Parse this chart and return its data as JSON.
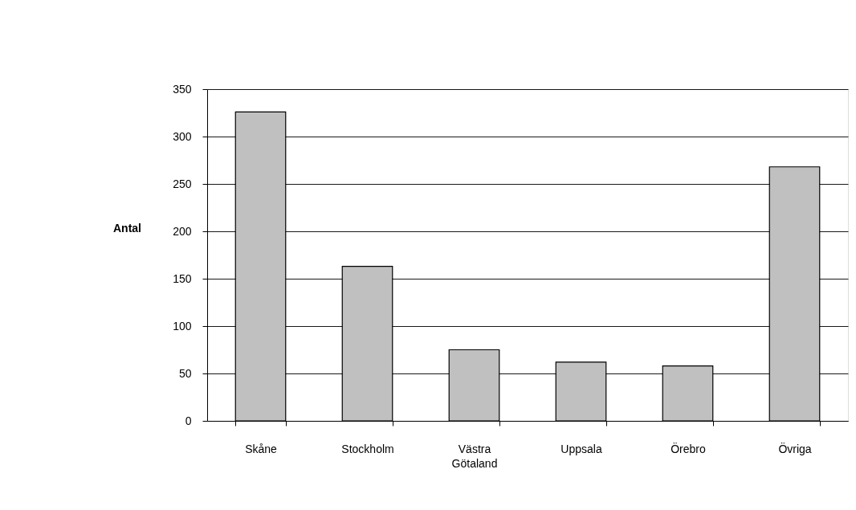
{
  "chart_data": {
    "type": "bar",
    "ylabel": "Antal",
    "categories": [
      "Skåne",
      "Stockholm",
      "Västra Götaland",
      "Uppsala",
      "Örebro",
      "Övriga"
    ],
    "values": [
      326,
      163,
      75,
      62,
      58,
      268
    ],
    "color": "#c0c0c0",
    "ylim": [
      0,
      350
    ],
    "yticks": [
      0,
      50,
      100,
      150,
      200,
      250,
      300,
      350
    ],
    "grid": "y"
  }
}
